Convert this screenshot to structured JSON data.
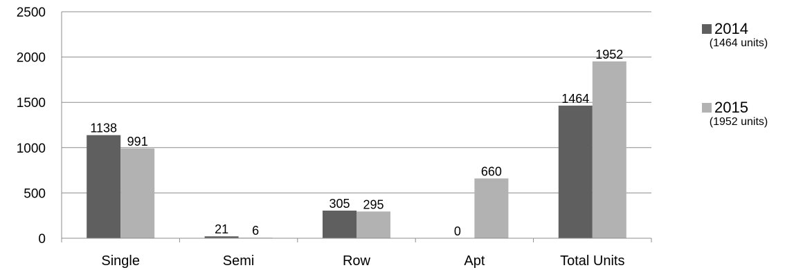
{
  "chart_data": {
    "type": "bar",
    "categories": [
      "Single",
      "Semi",
      "Row",
      "Apt",
      "Total Units"
    ],
    "series": [
      {
        "name": "2014",
        "note": "(1464 units)",
        "color": "#5f5f5f",
        "values": [
          1138,
          21,
          305,
          0,
          1464
        ]
      },
      {
        "name": "2015",
        "note": "(1952 units)",
        "color": "#b2b2b2",
        "values": [
          991,
          6,
          295,
          660,
          1952
        ]
      }
    ],
    "yticks": [
      0,
      500,
      1000,
      1500,
      2000,
      2500
    ],
    "ylim": [
      0,
      2500
    ],
    "grid": true,
    "legend_position": "right",
    "title": "",
    "xlabel": "",
    "ylabel": ""
  }
}
